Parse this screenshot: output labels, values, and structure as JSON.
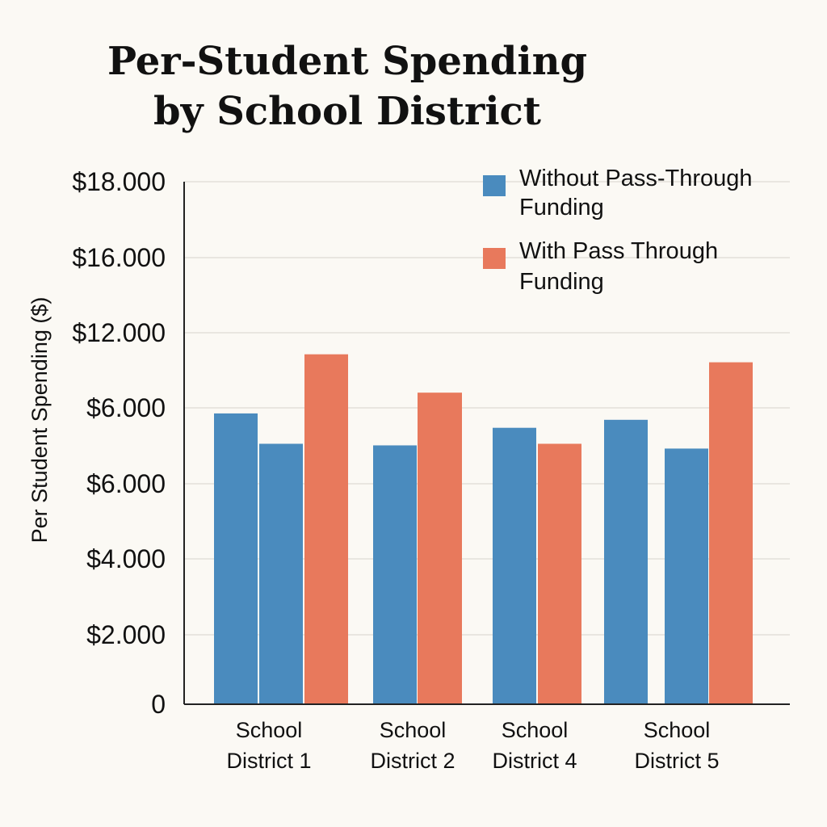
{
  "chart_data": {
    "type": "bar",
    "title_lines": [
      "Per-Student Spending",
      "by School District"
    ],
    "ylabel": "Per Student Spending ($)",
    "y_tick_labels": [
      "0",
      "$2.000",
      "$4.000",
      "$6.000",
      "$6.000",
      "$12.000",
      "$16.000",
      "$18.000"
    ],
    "ylim": [
      0,
      14000
    ],
    "grid": true,
    "legend_position": "top-right",
    "colors": {
      "without": "#4a8bbe",
      "with": "#e8795c"
    },
    "series": [
      {
        "name": "Without Pass-Through Funding",
        "name_lines": [
          "Without Pass-Through",
          "Funding"
        ]
      },
      {
        "name": "With Pass Through Funding",
        "name_lines": [
          "With Pass Through",
          "Funding"
        ]
      }
    ],
    "groups": [
      {
        "category": "School District 1",
        "label_lines": [
          "School",
          "District 1"
        ],
        "bars": [
          {
            "series": 0,
            "value": 9100
          },
          {
            "series": 0,
            "value": 8150
          },
          {
            "series": 1,
            "value": 10950
          }
        ]
      },
      {
        "category": "School District 2",
        "label_lines": [
          "School",
          "District 2"
        ],
        "bars": [
          {
            "series": 0,
            "value": 8100
          },
          {
            "series": 1,
            "value": 9750
          }
        ]
      },
      {
        "category": "School District 4",
        "label_lines": [
          "School",
          "District 4"
        ],
        "bars": [
          {
            "series": 0,
            "value": 8650
          },
          {
            "series": 1,
            "value": 8150
          }
        ]
      },
      {
        "category": "School District 5",
        "label_lines": [
          "School",
          "District 5"
        ],
        "bars": [
          {
            "series": 0,
            "value": 8900
          },
          {
            "series": 0,
            "value": 8000
          },
          {
            "series": 1,
            "value": 10700
          }
        ]
      }
    ]
  }
}
